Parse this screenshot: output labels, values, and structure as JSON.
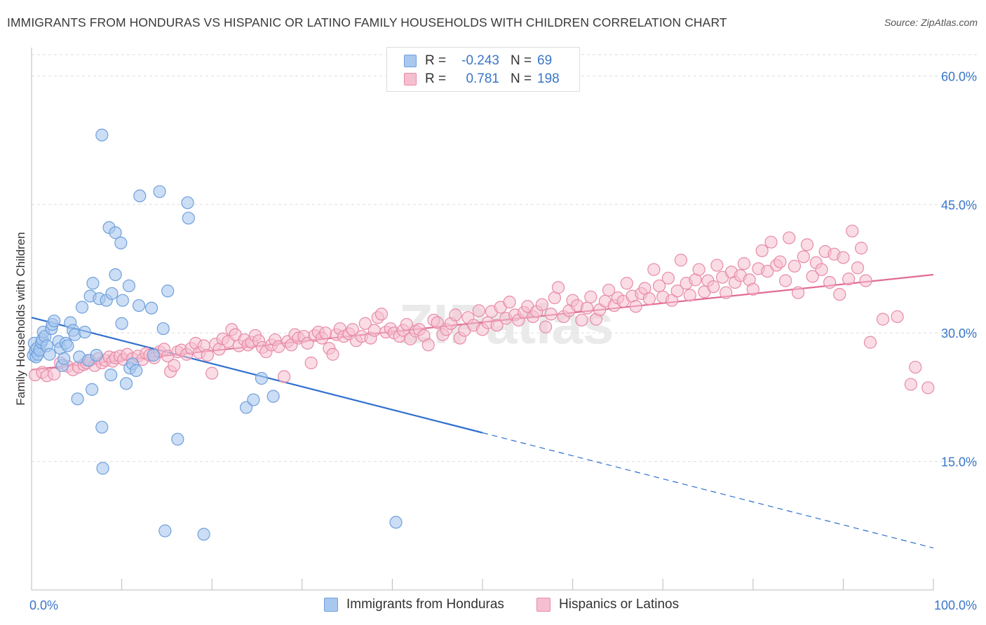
{
  "header": {
    "title": "IMMIGRANTS FROM HONDURAS VS HISPANIC OR LATINO FAMILY HOUSEHOLDS WITH CHILDREN CORRELATION CHART",
    "source": "Source: ZipAtlas.com"
  },
  "legend": {
    "series": [
      {
        "r_label": "R =",
        "r_value": "-0.243",
        "n_label": "N =",
        "n_value": "69"
      },
      {
        "r_label": "R =",
        "r_value": "0.781",
        "n_label": "N =",
        "n_value": "198"
      }
    ]
  },
  "bottom_legend": {
    "items": [
      "Immigrants from Honduras",
      "Hispanics or Latinos"
    ]
  },
  "watermark": "ZIPatlas",
  "colors": {
    "blue_fill": "#a9c8ef",
    "blue_stroke": "#6f9fdc",
    "blue_line": "#2f6fcf",
    "pink_fill": "#f6bfd0",
    "pink_stroke": "#e78aa8",
    "pink_line": "#e06b93",
    "axis_text": "#3a76c8",
    "grid": "#dddddd"
  },
  "chart_data": {
    "type": "scatter",
    "title": "IMMIGRANTS FROM HONDURAS VS HISPANIC OR LATINO FAMILY HOUSEHOLDS WITH CHILDREN CORRELATION CHART",
    "xlabel": "",
    "ylabel": "Family Households with Children",
    "xlim": [
      0,
      100
    ],
    "ylim": [
      0,
      63.3
    ],
    "x_tick_labels": [
      "0.0%",
      "100.0%"
    ],
    "y_ticks": [
      15,
      30,
      45,
      60
    ],
    "y_tick_labels": [
      "15.0%",
      "30.0%",
      "45.0%",
      "60.0%"
    ],
    "grid": true,
    "legend_position": "top-center",
    "series": [
      {
        "name": "Immigrants from Honduras",
        "color": "#a9c8ef",
        "r": -0.243,
        "n": 69,
        "trend": {
          "x0": 0,
          "y0": 31.8,
          "x1": 100,
          "y1": 4.9,
          "solid_until_x": 50
        },
        "points": [
          [
            0.2,
            27.4
          ],
          [
            0.3,
            28.8
          ],
          [
            0.4,
            27.9
          ],
          [
            0.5,
            27.2
          ],
          [
            0.6,
            28.2
          ],
          [
            0.7,
            27.5
          ],
          [
            0.9,
            28.0
          ],
          [
            1.1,
            28.9
          ],
          [
            1.2,
            29.2
          ],
          [
            1.3,
            30.1
          ],
          [
            1.5,
            29.6
          ],
          [
            1.7,
            28.5
          ],
          [
            2.0,
            27.5
          ],
          [
            2.2,
            30.5
          ],
          [
            2.3,
            31.0
          ],
          [
            2.5,
            31.4
          ],
          [
            3.0,
            29.0
          ],
          [
            3.2,
            28.2
          ],
          [
            3.4,
            26.2
          ],
          [
            3.6,
            27.0
          ],
          [
            3.8,
            28.8
          ],
          [
            4.0,
            28.5
          ],
          [
            4.3,
            31.2
          ],
          [
            4.6,
            30.3
          ],
          [
            4.8,
            29.8
          ],
          [
            5.1,
            22.3
          ],
          [
            5.3,
            27.2
          ],
          [
            5.6,
            33.0
          ],
          [
            5.9,
            30.1
          ],
          [
            6.3,
            26.8
          ],
          [
            6.5,
            34.3
          ],
          [
            6.7,
            23.4
          ],
          [
            6.8,
            35.8
          ],
          [
            7.2,
            27.4
          ],
          [
            7.5,
            34.0
          ],
          [
            7.8,
            19.0
          ],
          [
            7.8,
            53.1
          ],
          [
            7.9,
            14.2
          ],
          [
            8.3,
            33.8
          ],
          [
            8.6,
            42.3
          ],
          [
            8.8,
            25.1
          ],
          [
            8.9,
            34.6
          ],
          [
            9.3,
            41.7
          ],
          [
            9.3,
            36.8
          ],
          [
            9.9,
            40.5
          ],
          [
            10.0,
            31.1
          ],
          [
            10.1,
            33.8
          ],
          [
            10.5,
            24.1
          ],
          [
            10.8,
            35.5
          ],
          [
            10.9,
            25.9
          ],
          [
            11.2,
            26.4
          ],
          [
            11.6,
            25.6
          ],
          [
            11.9,
            33.2
          ],
          [
            12.0,
            46.0
          ],
          [
            13.3,
            32.9
          ],
          [
            13.5,
            27.4
          ],
          [
            14.2,
            46.5
          ],
          [
            14.6,
            30.5
          ],
          [
            14.8,
            6.9
          ],
          [
            15.1,
            34.9
          ],
          [
            16.2,
            17.6
          ],
          [
            17.3,
            45.2
          ],
          [
            17.4,
            43.4
          ],
          [
            19.1,
            6.5
          ],
          [
            23.8,
            21.3
          ],
          [
            24.6,
            22.2
          ],
          [
            25.5,
            24.7
          ],
          [
            26.8,
            22.6
          ],
          [
            40.4,
            7.9
          ]
        ]
      },
      {
        "name": "Hispanics or Latinos",
        "color": "#f6bfd0",
        "r": 0.781,
        "n": 198,
        "trend": {
          "x0": 0,
          "y0": 25.7,
          "x1": 100,
          "y1": 36.8
        },
        "points": [
          [
            0.4,
            25.1
          ],
          [
            1.2,
            25.4
          ],
          [
            1.7,
            25.0
          ],
          [
            2.5,
            25.2
          ],
          [
            3.2,
            26.5
          ],
          [
            4.0,
            26.1
          ],
          [
            4.6,
            25.7
          ],
          [
            5.2,
            26.0
          ],
          [
            5.8,
            26.3
          ],
          [
            6.1,
            26.5
          ],
          [
            6.5,
            26.8
          ],
          [
            7.0,
            26.2
          ],
          [
            7.4,
            27.0
          ],
          [
            7.8,
            26.5
          ],
          [
            8.2,
            26.8
          ],
          [
            8.6,
            27.2
          ],
          [
            9.0,
            26.7
          ],
          [
            9.3,
            27.1
          ],
          [
            9.8,
            27.3
          ],
          [
            10.2,
            26.9
          ],
          [
            10.6,
            27.5
          ],
          [
            11.2,
            27.0
          ],
          [
            11.8,
            27.3
          ],
          [
            12.3,
            26.9
          ],
          [
            12.7,
            27.6
          ],
          [
            13.1,
            27.4
          ],
          [
            13.6,
            27.1
          ],
          [
            14.2,
            27.8
          ],
          [
            14.7,
            28.1
          ],
          [
            15.1,
            27.3
          ],
          [
            15.4,
            25.5
          ],
          [
            15.8,
            26.2
          ],
          [
            16.2,
            27.8
          ],
          [
            16.6,
            28.0
          ],
          [
            17.2,
            27.5
          ],
          [
            17.7,
            28.2
          ],
          [
            18.2,
            28.8
          ],
          [
            18.6,
            27.7
          ],
          [
            19.1,
            28.5
          ],
          [
            19.5,
            27.4
          ],
          [
            20.0,
            25.3
          ],
          [
            20.4,
            28.7
          ],
          [
            20.8,
            28.1
          ],
          [
            21.2,
            29.3
          ],
          [
            21.8,
            29.0
          ],
          [
            22.2,
            30.4
          ],
          [
            22.6,
            29.8
          ],
          [
            23.0,
            28.5
          ],
          [
            23.6,
            29.2
          ],
          [
            24.0,
            28.6
          ],
          [
            24.4,
            28.9
          ],
          [
            24.8,
            29.7
          ],
          [
            25.2,
            29.1
          ],
          [
            25.6,
            28.3
          ],
          [
            26.0,
            27.8
          ],
          [
            26.6,
            28.6
          ],
          [
            27.0,
            29.2
          ],
          [
            27.4,
            28.4
          ],
          [
            28.0,
            24.9
          ],
          [
            28.4,
            29.0
          ],
          [
            28.8,
            28.6
          ],
          [
            29.2,
            29.8
          ],
          [
            29.6,
            29.4
          ],
          [
            30.2,
            29.6
          ],
          [
            30.6,
            28.8
          ],
          [
            31.0,
            26.5
          ],
          [
            31.4,
            29.7
          ],
          [
            31.8,
            30.1
          ],
          [
            32.2,
            29.4
          ],
          [
            32.6,
            30.0
          ],
          [
            33.0,
            28.2
          ],
          [
            33.4,
            27.5
          ],
          [
            33.8,
            29.8
          ],
          [
            34.2,
            30.5
          ],
          [
            34.6,
            29.6
          ],
          [
            35.2,
            29.9
          ],
          [
            35.6,
            30.4
          ],
          [
            36.0,
            29.1
          ],
          [
            36.6,
            29.6
          ],
          [
            37.0,
            31.1
          ],
          [
            37.6,
            29.4
          ],
          [
            38.0,
            30.3
          ],
          [
            38.4,
            31.8
          ],
          [
            38.8,
            32.2
          ],
          [
            39.3,
            30.1
          ],
          [
            39.8,
            30.5
          ],
          [
            40.2,
            30.0
          ],
          [
            40.8,
            29.6
          ],
          [
            41.2,
            30.3
          ],
          [
            41.6,
            31.0
          ],
          [
            42.0,
            29.3
          ],
          [
            42.6,
            30.2
          ],
          [
            43.0,
            30.4
          ],
          [
            43.5,
            29.7
          ],
          [
            44.0,
            28.6
          ],
          [
            44.6,
            31.5
          ],
          [
            45.0,
            31.2
          ],
          [
            45.6,
            29.8
          ],
          [
            46.0,
            30.4
          ],
          [
            46.5,
            31.1
          ],
          [
            47.0,
            32.1
          ],
          [
            47.5,
            29.4
          ],
          [
            48.0,
            30.3
          ],
          [
            48.4,
            31.8
          ],
          [
            49.0,
            30.9
          ],
          [
            49.6,
            32.6
          ],
          [
            50.0,
            30.4
          ],
          [
            50.6,
            31.2
          ],
          [
            51.0,
            32.5
          ],
          [
            51.6,
            30.9
          ],
          [
            52.0,
            33.0
          ],
          [
            52.6,
            31.7
          ],
          [
            53.0,
            33.6
          ],
          [
            53.6,
            32.1
          ],
          [
            54.0,
            31.5
          ],
          [
            54.6,
            32.4
          ],
          [
            55.0,
            33.1
          ],
          [
            55.6,
            31.9
          ],
          [
            56.0,
            32.5
          ],
          [
            56.6,
            33.3
          ],
          [
            57.0,
            30.7
          ],
          [
            57.6,
            32.2
          ],
          [
            58.0,
            34.1
          ],
          [
            58.4,
            35.3
          ],
          [
            59.0,
            31.9
          ],
          [
            59.6,
            32.6
          ],
          [
            60.0,
            33.8
          ],
          [
            60.5,
            33.2
          ],
          [
            61.0,
            31.5
          ],
          [
            61.6,
            32.9
          ],
          [
            62.0,
            34.2
          ],
          [
            62.6,
            31.6
          ],
          [
            63.0,
            32.7
          ],
          [
            63.6,
            33.7
          ],
          [
            64.0,
            35.0
          ],
          [
            64.6,
            33.2
          ],
          [
            65.0,
            34.1
          ],
          [
            65.6,
            33.7
          ],
          [
            66.0,
            35.8
          ],
          [
            66.6,
            34.3
          ],
          [
            67.0,
            33.1
          ],
          [
            67.6,
            34.6
          ],
          [
            68.0,
            35.2
          ],
          [
            68.5,
            34.0
          ],
          [
            69.0,
            37.4
          ],
          [
            69.6,
            35.5
          ],
          [
            70.0,
            34.2
          ],
          [
            70.6,
            36.4
          ],
          [
            71.0,
            33.8
          ],
          [
            71.6,
            34.9
          ],
          [
            72.0,
            38.5
          ],
          [
            72.6,
            35.8
          ],
          [
            73.0,
            34.4
          ],
          [
            73.6,
            36.2
          ],
          [
            74.0,
            37.4
          ],
          [
            74.6,
            34.8
          ],
          [
            75.0,
            36.1
          ],
          [
            75.6,
            35.4
          ],
          [
            76.0,
            37.9
          ],
          [
            76.6,
            36.5
          ],
          [
            77.0,
            34.7
          ],
          [
            77.6,
            37.1
          ],
          [
            78.0,
            35.9
          ],
          [
            78.6,
            36.7
          ],
          [
            79.0,
            38.1
          ],
          [
            79.6,
            36.2
          ],
          [
            80.0,
            35.1
          ],
          [
            80.6,
            37.5
          ],
          [
            81.0,
            39.6
          ],
          [
            81.6,
            37.2
          ],
          [
            82.0,
            40.6
          ],
          [
            82.6,
            37.9
          ],
          [
            83.0,
            38.3
          ],
          [
            83.6,
            36.1
          ],
          [
            84.0,
            41.1
          ],
          [
            84.6,
            37.8
          ],
          [
            85.0,
            34.7
          ],
          [
            85.6,
            38.9
          ],
          [
            86.0,
            40.3
          ],
          [
            86.6,
            36.6
          ],
          [
            87.0,
            38.2
          ],
          [
            87.6,
            37.4
          ],
          [
            88.0,
            39.5
          ],
          [
            88.5,
            35.9
          ],
          [
            89.0,
            39.2
          ],
          [
            89.6,
            34.5
          ],
          [
            90.0,
            38.8
          ],
          [
            90.6,
            36.3
          ],
          [
            91.0,
            41.9
          ],
          [
            91.6,
            37.6
          ],
          [
            92.0,
            39.9
          ],
          [
            92.5,
            36.1
          ],
          [
            93.0,
            28.9
          ],
          [
            94.4,
            31.6
          ],
          [
            97.5,
            24.0
          ],
          [
            98.0,
            26.0
          ],
          [
            99.4,
            23.6
          ],
          [
            96.0,
            31.9
          ]
        ]
      }
    ]
  }
}
